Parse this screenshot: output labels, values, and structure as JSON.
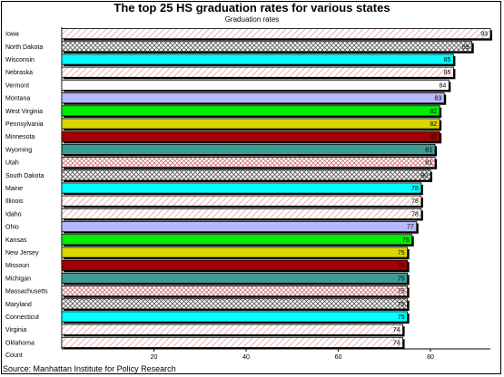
{
  "chart_data": {
    "type": "bar",
    "orientation": "horizontal",
    "title": "The top 25 HS  graduation rates for various states",
    "subtitle": "Graduation rates",
    "xlabel": "Count",
    "source": "Source: Manhattan Institute for Policy Research",
    "xlim": [
      0,
      93
    ],
    "xticks": [
      20,
      40,
      60,
      80
    ],
    "grid": false,
    "legend": "none",
    "categories": [
      "Iowa",
      "North Dakota",
      "Wisconsin",
      "Nebraska",
      "Vermont",
      "Montana",
      "West Virginia",
      "Pennsylvania",
      "Minnesota",
      "Wyoming",
      "Utah",
      "South Dakota",
      "Maine",
      "Illinois",
      "Idaho",
      "Ohio",
      "Kansas",
      "New Jersey",
      "Missouri",
      "Michigan",
      "Massachusetts",
      "Maryland",
      "Connecticut",
      "Virginia",
      "Oklahoma"
    ],
    "values": [
      93,
      89,
      85,
      85,
      84,
      83,
      82,
      82,
      82,
      81,
      81,
      80,
      78,
      78,
      78,
      77,
      76,
      75,
      75,
      75,
      75,
      75,
      75,
      74,
      74
    ],
    "data_labels": [
      "93",
      "89",
      "85",
      "85",
      "84",
      "83",
      "82",
      "82",
      "82",
      "81",
      "81",
      "80",
      "78",
      "78",
      "78",
      "77",
      "76",
      "75",
      "75",
      "75",
      "75",
      "75",
      "75",
      "74",
      "74"
    ],
    "bar_fills": [
      "hatch-red",
      "crosshatch",
      "cyan",
      "hatch-red",
      "white",
      "lavender",
      "green",
      "yellow",
      "darkred",
      "teal",
      "crosshatch-red",
      "crosshatch",
      "cyan",
      "hatch-red",
      "hatch-red",
      "lavender",
      "green",
      "yellow",
      "darkred",
      "teal",
      "crosshatch-red",
      "crosshatch",
      "cyan",
      "hatch-red",
      "hatch-red"
    ],
    "colors": {
      "cyan": "#00ffff",
      "lavender": "#b8b8ff",
      "green": "#00ee00",
      "yellow": "#d8d800",
      "darkred": "#a00000",
      "teal": "#3c9c94",
      "hatch": "#e08080",
      "crosshatch": "#555555"
    }
  }
}
